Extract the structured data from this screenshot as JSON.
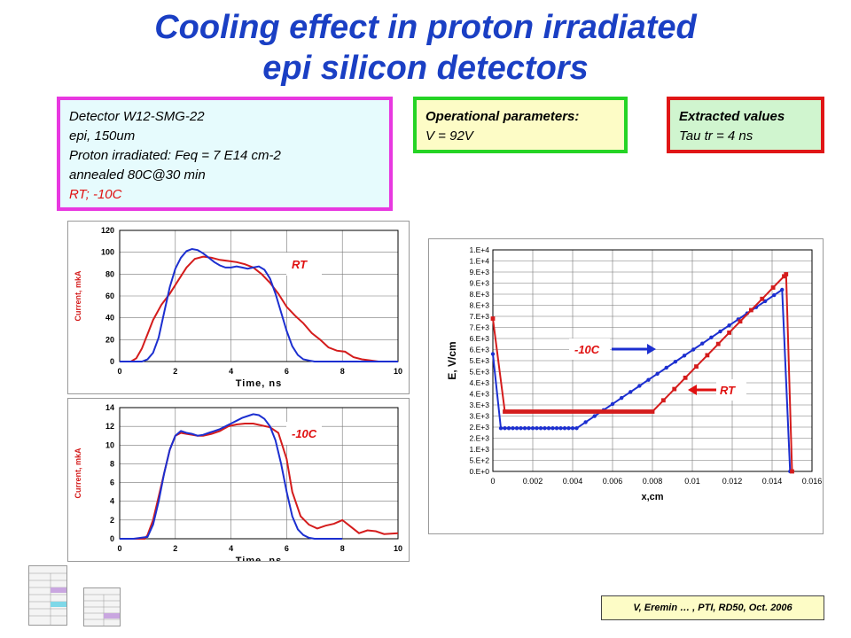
{
  "slide": {
    "title_line1": "Cooling effect in proton irradiated",
    "title_line2": "epi silicon detectors",
    "title_color": "#1a3fc4"
  },
  "detector_box": {
    "line1": "Detector W12-SMG-22",
    "line2": "epi, 150um",
    "line3": "Proton irradiated: Feq = 7 E14 cm-2",
    "line4": "annealed 80C@30 min",
    "line5": "RT; -10C",
    "border_color": "#e838e0"
  },
  "operational_box": {
    "heading": "Operational parameters:",
    "value": "V = 92V",
    "border_color": "#25d425"
  },
  "extracted_box": {
    "heading": "Extracted values",
    "value": "Tau tr = 4 ns",
    "border_color": "#e01616"
  },
  "footer": "V, Eremin … , PTI, RD50, Oct. 2006",
  "chart_data": [
    {
      "type": "line",
      "label": "RT",
      "xlabel": "Time, ns",
      "ylabel": "Current, mkA",
      "xlim": [
        0,
        10
      ],
      "ylim": [
        0,
        120
      ],
      "x_ticks": [
        "0",
        "2",
        "4",
        "6",
        "8",
        "10"
      ],
      "y_ticks": [
        "0",
        "20",
        "40",
        "60",
        "80",
        "100",
        "120"
      ],
      "grid": true,
      "series": [
        {
          "color": "#d41c1c",
          "x": [
            0,
            0.4,
            0.6,
            0.8,
            1.0,
            1.2,
            1.5,
            1.8,
            2.1,
            2.4,
            2.7,
            3.0,
            3.3,
            3.6,
            3.9,
            4.2,
            4.5,
            4.8,
            5.1,
            5.4,
            5.7,
            6.0,
            6.3,
            6.6,
            6.9,
            7.2,
            7.5,
            7.8,
            8.1,
            8.4,
            8.7,
            9.0,
            9.3,
            9.6,
            10
          ],
          "y": [
            0,
            0,
            3,
            12,
            25,
            38,
            52,
            62,
            74,
            86,
            94,
            96,
            95,
            93,
            92,
            91,
            89,
            86,
            80,
            72,
            62,
            50,
            42,
            35,
            26,
            20,
            13,
            10,
            9,
            4,
            2,
            1,
            0,
            0,
            0
          ]
        },
        {
          "color": "#1c2fd0",
          "x": [
            0,
            0.5,
            0.8,
            1.0,
            1.2,
            1.4,
            1.6,
            1.8,
            2.0,
            2.2,
            2.4,
            2.6,
            2.8,
            3.0,
            3.2,
            3.4,
            3.6,
            3.8,
            4.0,
            4.2,
            4.4,
            4.6,
            4.8,
            5.0,
            5.2,
            5.4,
            5.6,
            5.8,
            6.0,
            6.2,
            6.4,
            6.6,
            6.8,
            7.0,
            7.5,
            8,
            10
          ],
          "y": [
            0,
            0,
            0,
            2,
            8,
            22,
            45,
            68,
            85,
            95,
            101,
            103,
            102,
            99,
            95,
            91,
            88,
            86,
            86,
            87,
            86,
            85,
            86,
            87,
            84,
            76,
            62,
            45,
            28,
            14,
            6,
            2,
            1,
            0,
            0,
            0,
            0
          ]
        }
      ]
    },
    {
      "type": "line",
      "label": "-10C",
      "xlabel": "Time, ns",
      "ylabel": "Current, mkA",
      "xlim": [
        0,
        10
      ],
      "ylim": [
        0,
        14
      ],
      "x_ticks": [
        "0",
        "2",
        "4",
        "6",
        "8",
        "10"
      ],
      "y_ticks": [
        "0",
        "2",
        "4",
        "6",
        "8",
        "10",
        "12",
        "14"
      ],
      "grid": true,
      "series": [
        {
          "color": "#d41c1c",
          "x": [
            0,
            0.3,
            0.6,
            0.9,
            1.0,
            1.2,
            1.4,
            1.6,
            1.8,
            2.0,
            2.2,
            2.4,
            2.6,
            2.8,
            3.0,
            3.3,
            3.6,
            3.9,
            4.2,
            4.5,
            4.8,
            5.1,
            5.4,
            5.7,
            6.0,
            6.2,
            6.5,
            6.8,
            7.1,
            7.4,
            7.7,
            8.0,
            8.3,
            8.6,
            8.9,
            9.2,
            9.5,
            10
          ],
          "y": [
            0,
            0,
            0,
            0,
            0.4,
            2,
            4.5,
            7,
            9.5,
            11,
            11.3,
            11.2,
            11.1,
            11,
            11,
            11.2,
            11.5,
            12,
            12.2,
            12.3,
            12.3,
            12.1,
            11.9,
            11.3,
            8.5,
            5,
            2.4,
            1.5,
            1.1,
            1.4,
            1.6,
            2.0,
            1.3,
            0.6,
            0.9,
            0.8,
            0.5,
            0.6
          ]
        },
        {
          "color": "#1c2fd0",
          "x": [
            0,
            0.5,
            1.0,
            1.2,
            1.4,
            1.6,
            1.8,
            2.0,
            2.2,
            2.4,
            2.6,
            2.8,
            3.0,
            3.2,
            3.4,
            3.6,
            3.8,
            4.0,
            4.2,
            4.4,
            4.6,
            4.8,
            5.0,
            5.2,
            5.4,
            5.6,
            5.8,
            6.0,
            6.2,
            6.4,
            6.6,
            6.8,
            7.0,
            7.5,
            8
          ],
          "y": [
            0,
            0,
            0.2,
            1.5,
            4,
            7,
            9.5,
            11,
            11.5,
            11.3,
            11.2,
            11,
            11.1,
            11.3,
            11.5,
            11.7,
            12,
            12.3,
            12.6,
            12.9,
            13.1,
            13.3,
            13.2,
            12.8,
            12,
            10.5,
            8,
            5,
            2.4,
            1,
            0.4,
            0.1,
            0,
            0,
            0
          ]
        }
      ]
    },
    {
      "type": "line",
      "xlabel": "x,cm",
      "ylabel": "E, V/cm",
      "xlim": [
        0,
        0.016
      ],
      "ylim": [
        0,
        10000
      ],
      "x_ticks": [
        "0",
        "0.002",
        "0.004",
        "0.006",
        "0.008",
        "0.01",
        "0.012",
        "0.014",
        "0.016"
      ],
      "y_ticks": [
        "0.E+0",
        "5.E+2",
        "1.E+3",
        "2.E+3",
        "2.E+3",
        "3.E+3",
        "3.E+3",
        "4.E+3",
        "4.E+3",
        "5.E+3",
        "5.E+3",
        "6.E+3",
        "6.E+3",
        "7.E+3",
        "7.E+3",
        "8.E+3",
        "8.E+3",
        "9.E+3",
        "9.E+3",
        "1.E+4",
        "1.E+4"
      ],
      "y_ticks_shown": [
        "0.E+0",
        "5.E+2",
        "1.E+3",
        "1.5.E+3",
        "2.E+3",
        "2.5.E+3",
        "3.E+3",
        "3.5.E+3",
        "4.E+3",
        "4.5.E+3",
        "5.E+3",
        "5.5.E+3",
        "6.E+3",
        "6.5.E+3",
        "7.E+3",
        "7.5.E+3",
        "8.E+3",
        "8.5.E+3",
        "9.E+3",
        "9.5.E+3",
        "1.E+4"
      ],
      "annotations": [
        "-10C",
        "RT"
      ],
      "grid": true,
      "series": [
        {
          "color": "#1c2fd0",
          "label_marker": "circle",
          "x_start": 0,
          "x_knee": 0.0004,
          "x_flat_end": 0.0042,
          "x_peak": 0.0145,
          "x_end": 0.0149,
          "y_start": 5300,
          "y_flat": 1950,
          "y_peak": 8200,
          "y_end": 0
        },
        {
          "color": "#d41c1c",
          "label_marker": "square",
          "x_start": 0,
          "x_knee": 0.0006,
          "x_flat_end": 0.008,
          "x_peak": 0.0147,
          "x_end": 0.015,
          "y_start": 6900,
          "y_flat": 2700,
          "y_peak": 8900,
          "y_end": 0
        }
      ]
    }
  ]
}
